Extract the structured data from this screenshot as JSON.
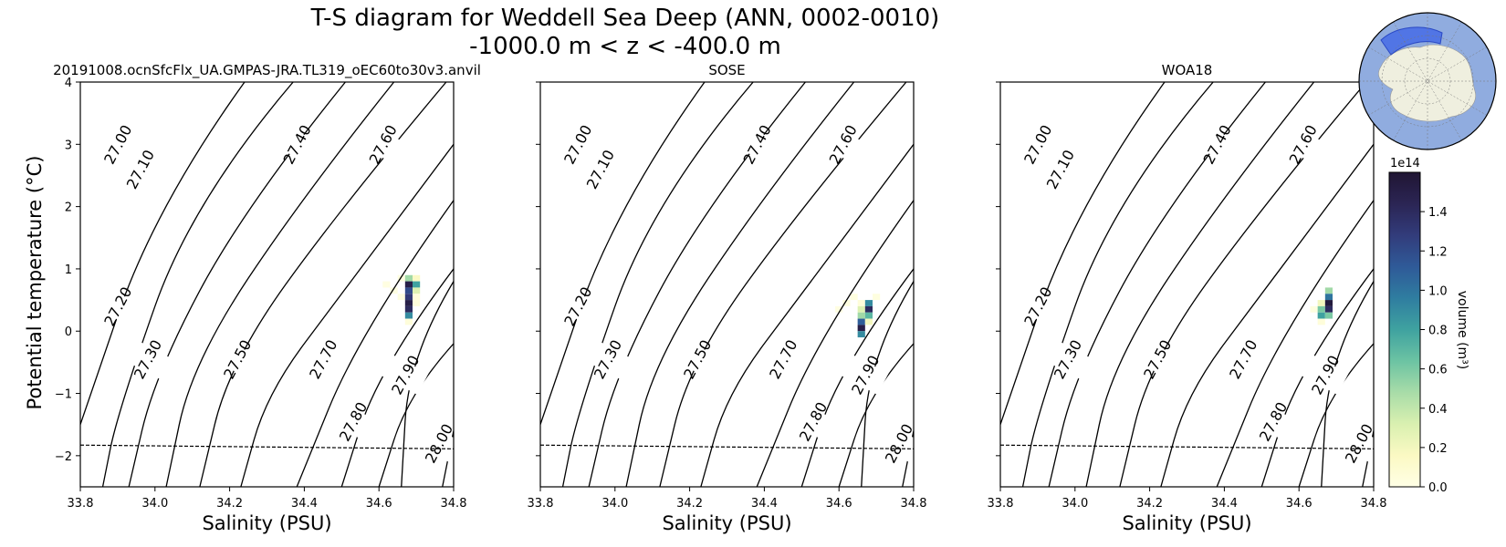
{
  "figure": {
    "title_line1": "T-S diagram for Weddell Sea Deep (ANN, 0002-0010)",
    "title_line2": "-1000.0 m < z < -400.0 m",
    "ylabel": "Potential temperature (°C)",
    "xlabel": "Salinity (PSU)"
  },
  "chart_data": [
    {
      "type": "heatmap",
      "title": "20191008.ocnSfcFlx_UA.GMPAS-JRA.TL319_oEC60to30v3.anvil",
      "xlabel": "Salinity (PSU)",
      "ylabel": "Potential temperature (°C)",
      "xlim": [
        33.8,
        34.8
      ],
      "ylim": [
        -2.5,
        4
      ],
      "freezing_line": {
        "style": "dashed",
        "points": [
          [
            33.8,
            -1.83
          ],
          [
            34.8,
            -1.89
          ]
        ]
      },
      "cells_volume_1e14": [
        {
          "s": 34.62,
          "t": 0.75,
          "v": 0.02
        },
        {
          "s": 34.64,
          "t": 0.65,
          "v": 0.03
        },
        {
          "s": 34.66,
          "t": 0.85,
          "v": 0.03
        },
        {
          "s": 34.66,
          "t": 0.55,
          "v": 0.03
        },
        {
          "s": 34.68,
          "t": 0.85,
          "v": 0.5
        },
        {
          "s": 34.68,
          "t": 0.75,
          "v": 1.5
        },
        {
          "s": 34.68,
          "t": 0.65,
          "v": 1.2
        },
        {
          "s": 34.68,
          "t": 0.55,
          "v": 1.3
        },
        {
          "s": 34.68,
          "t": 0.45,
          "v": 1.5
        },
        {
          "s": 34.68,
          "t": 0.35,
          "v": 1.4
        },
        {
          "s": 34.68,
          "t": 0.25,
          "v": 0.9
        },
        {
          "s": 34.68,
          "t": 0.15,
          "v": 0.05
        },
        {
          "s": 34.7,
          "t": 0.85,
          "v": 0.15
        },
        {
          "s": 34.7,
          "t": 0.75,
          "v": 0.8
        },
        {
          "s": 34.7,
          "t": 0.65,
          "v": 0.3
        },
        {
          "s": 34.7,
          "t": 0.55,
          "v": 0.05
        },
        {
          "s": 34.7,
          "t": 0.45,
          "v": 0.05
        }
      ]
    },
    {
      "type": "heatmap",
      "title": "SOSE",
      "xlabel": "Salinity (PSU)",
      "xlim": [
        33.8,
        34.8
      ],
      "ylim": [
        -2.5,
        4
      ],
      "freezing_line": {
        "style": "dashed",
        "points": [
          [
            33.8,
            -1.83
          ],
          [
            34.8,
            -1.89
          ]
        ]
      },
      "cells_volume_1e14": [
        {
          "s": 34.6,
          "t": 0.35,
          "v": 0.02
        },
        {
          "s": 34.62,
          "t": 0.45,
          "v": 0.03
        },
        {
          "s": 34.64,
          "t": 0.55,
          "v": 0.03
        },
        {
          "s": 34.66,
          "t": 0.45,
          "v": 0.05
        },
        {
          "s": 34.66,
          "t": 0.35,
          "v": 0.3
        },
        {
          "s": 34.66,
          "t": 0.25,
          "v": 0.5
        },
        {
          "s": 34.66,
          "t": 0.15,
          "v": 1.1
        },
        {
          "s": 34.66,
          "t": 0.05,
          "v": 1.5
        },
        {
          "s": 34.66,
          "t": -0.05,
          "v": 0.9
        },
        {
          "s": 34.68,
          "t": 0.45,
          "v": 0.9
        },
        {
          "s": 34.68,
          "t": 0.35,
          "v": 1.4
        },
        {
          "s": 34.68,
          "t": 0.25,
          "v": 0.7
        },
        {
          "s": 34.68,
          "t": 0.15,
          "v": 0.2
        },
        {
          "s": 34.7,
          "t": 0.55,
          "v": 0.03
        }
      ]
    },
    {
      "type": "heatmap",
      "title": "WOA18",
      "xlabel": "Salinity (PSU)",
      "xlim": [
        33.8,
        34.8
      ],
      "ylim": [
        -2.5,
        4
      ],
      "freezing_line": {
        "style": "dashed",
        "points": [
          [
            33.8,
            -1.83
          ],
          [
            34.8,
            -1.89
          ]
        ]
      },
      "cells_volume_1e14": [
        {
          "s": 34.64,
          "t": 0.35,
          "v": 0.03
        },
        {
          "s": 34.66,
          "t": 0.45,
          "v": 0.2
        },
        {
          "s": 34.66,
          "t": 0.35,
          "v": 0.6
        },
        {
          "s": 34.66,
          "t": 0.25,
          "v": 0.8
        },
        {
          "s": 34.68,
          "t": 0.65,
          "v": 0.5
        },
        {
          "s": 34.68,
          "t": 0.55,
          "v": 1.0
        },
        {
          "s": 34.68,
          "t": 0.45,
          "v": 1.55
        },
        {
          "s": 34.68,
          "t": 0.35,
          "v": 1.4
        },
        {
          "s": 34.68,
          "t": 0.25,
          "v": 0.6
        },
        {
          "s": 34.66,
          "t": 0.15,
          "v": 0.05
        }
      ]
    }
  ],
  "density_contours": [
    {
      "label": "27.00",
      "s_at_t": [
        [
          34.24,
          4
        ],
        [
          34.0,
          2
        ],
        [
          33.8,
          -1.5
        ]
      ],
      "label_pos": [
        33.9,
        3.0
      ]
    },
    {
      "label": "27.10",
      "s_at_t": [
        [
          34.37,
          4
        ],
        [
          34.1,
          2.1
        ],
        [
          33.9,
          -1.3
        ],
        [
          33.86,
          -2.5
        ]
      ],
      "label_pos": [
        33.96,
        2.6
      ]
    },
    {
      "label": "27.20",
      "s_at_t": [
        [
          34.51,
          4
        ],
        [
          34.24,
          2.0
        ],
        [
          34.0,
          -0.7
        ],
        [
          33.93,
          -2.5
        ]
      ],
      "label_pos": [
        33.9,
        0.4
      ]
    },
    {
      "label": "27.30",
      "s_at_t": [
        [
          34.64,
          4
        ],
        [
          34.4,
          2.2
        ],
        [
          34.1,
          -0.5
        ],
        [
          34.03,
          -2.5
        ]
      ],
      "label_pos": [
        33.98,
        -0.45
      ]
    },
    {
      "label": "27.40",
      "s_at_t": [
        [
          34.78,
          4
        ],
        [
          34.5,
          2.0
        ],
        [
          34.2,
          -0.5
        ],
        [
          34.12,
          -2.5
        ]
      ],
      "label_pos": [
        34.38,
        3.0
      ]
    },
    {
      "label": "27.50",
      "s_at_t": [
        [
          34.8,
          3.0
        ],
        [
          34.5,
          0.6
        ],
        [
          34.3,
          -1.0
        ],
        [
          34.23,
          -2.5
        ]
      ],
      "label_pos": [
        34.22,
        -0.45
      ]
    },
    {
      "label": "27.60",
      "s_at_t": [
        [
          34.8,
          2.1
        ],
        [
          34.55,
          0.0
        ],
        [
          34.38,
          -2.5
        ]
      ],
      "label_pos": [
        34.61,
        3.0
      ]
    },
    {
      "label": "27.70",
      "s_at_t": [
        [
          34.8,
          1.0
        ],
        [
          34.6,
          -0.6
        ],
        [
          34.5,
          -2.5
        ]
      ],
      "label_pos": [
        34.45,
        -0.45
      ]
    },
    {
      "label": "27.80",
      "s_at_t": [
        [
          34.8,
          -0.2
        ],
        [
          34.68,
          -1.0
        ],
        [
          34.6,
          -2.5
        ]
      ],
      "label_pos": [
        34.53,
        -1.45
      ]
    },
    {
      "label": "27.90",
      "s_at_t": [
        [
          34.8,
          0.8
        ],
        [
          34.68,
          -0.4
        ],
        [
          34.66,
          -2.5
        ]
      ],
      "label_pos": [
        34.67,
        -0.7
      ]
    },
    {
      "label": "28.00",
      "s_at_t": [
        [
          34.8,
          -1.6
        ],
        [
          34.77,
          -2.5
        ]
      ],
      "label_pos": [
        34.76,
        -1.8
      ]
    }
  ],
  "x_ticks": [
    "33.8",
    "34.0",
    "34.2",
    "34.4",
    "34.6",
    "34.8"
  ],
  "y_ticks": [
    "4",
    "3",
    "2",
    "1",
    "0",
    "−1",
    "−2"
  ],
  "colorbar": {
    "label": "volume (m³)",
    "multiplier": "1e14",
    "ticks": [
      "1.4",
      "1.2",
      "1.0",
      "0.8",
      "0.6",
      "0.4",
      "0.2",
      "0.0"
    ],
    "max": 1.6,
    "colormap": [
      "#ffffe5",
      "#fbf9c3",
      "#d9f0b0",
      "#a8dca8",
      "#6cc3a3",
      "#3fa2a0",
      "#2f7da0",
      "#2f5a98",
      "#323c7b",
      "#2b2554",
      "#201533"
    ]
  },
  "inset_map": {
    "ocean_color": "#90acdf",
    "land_color": "#efefdf",
    "region_color": "#4a6fe5"
  }
}
